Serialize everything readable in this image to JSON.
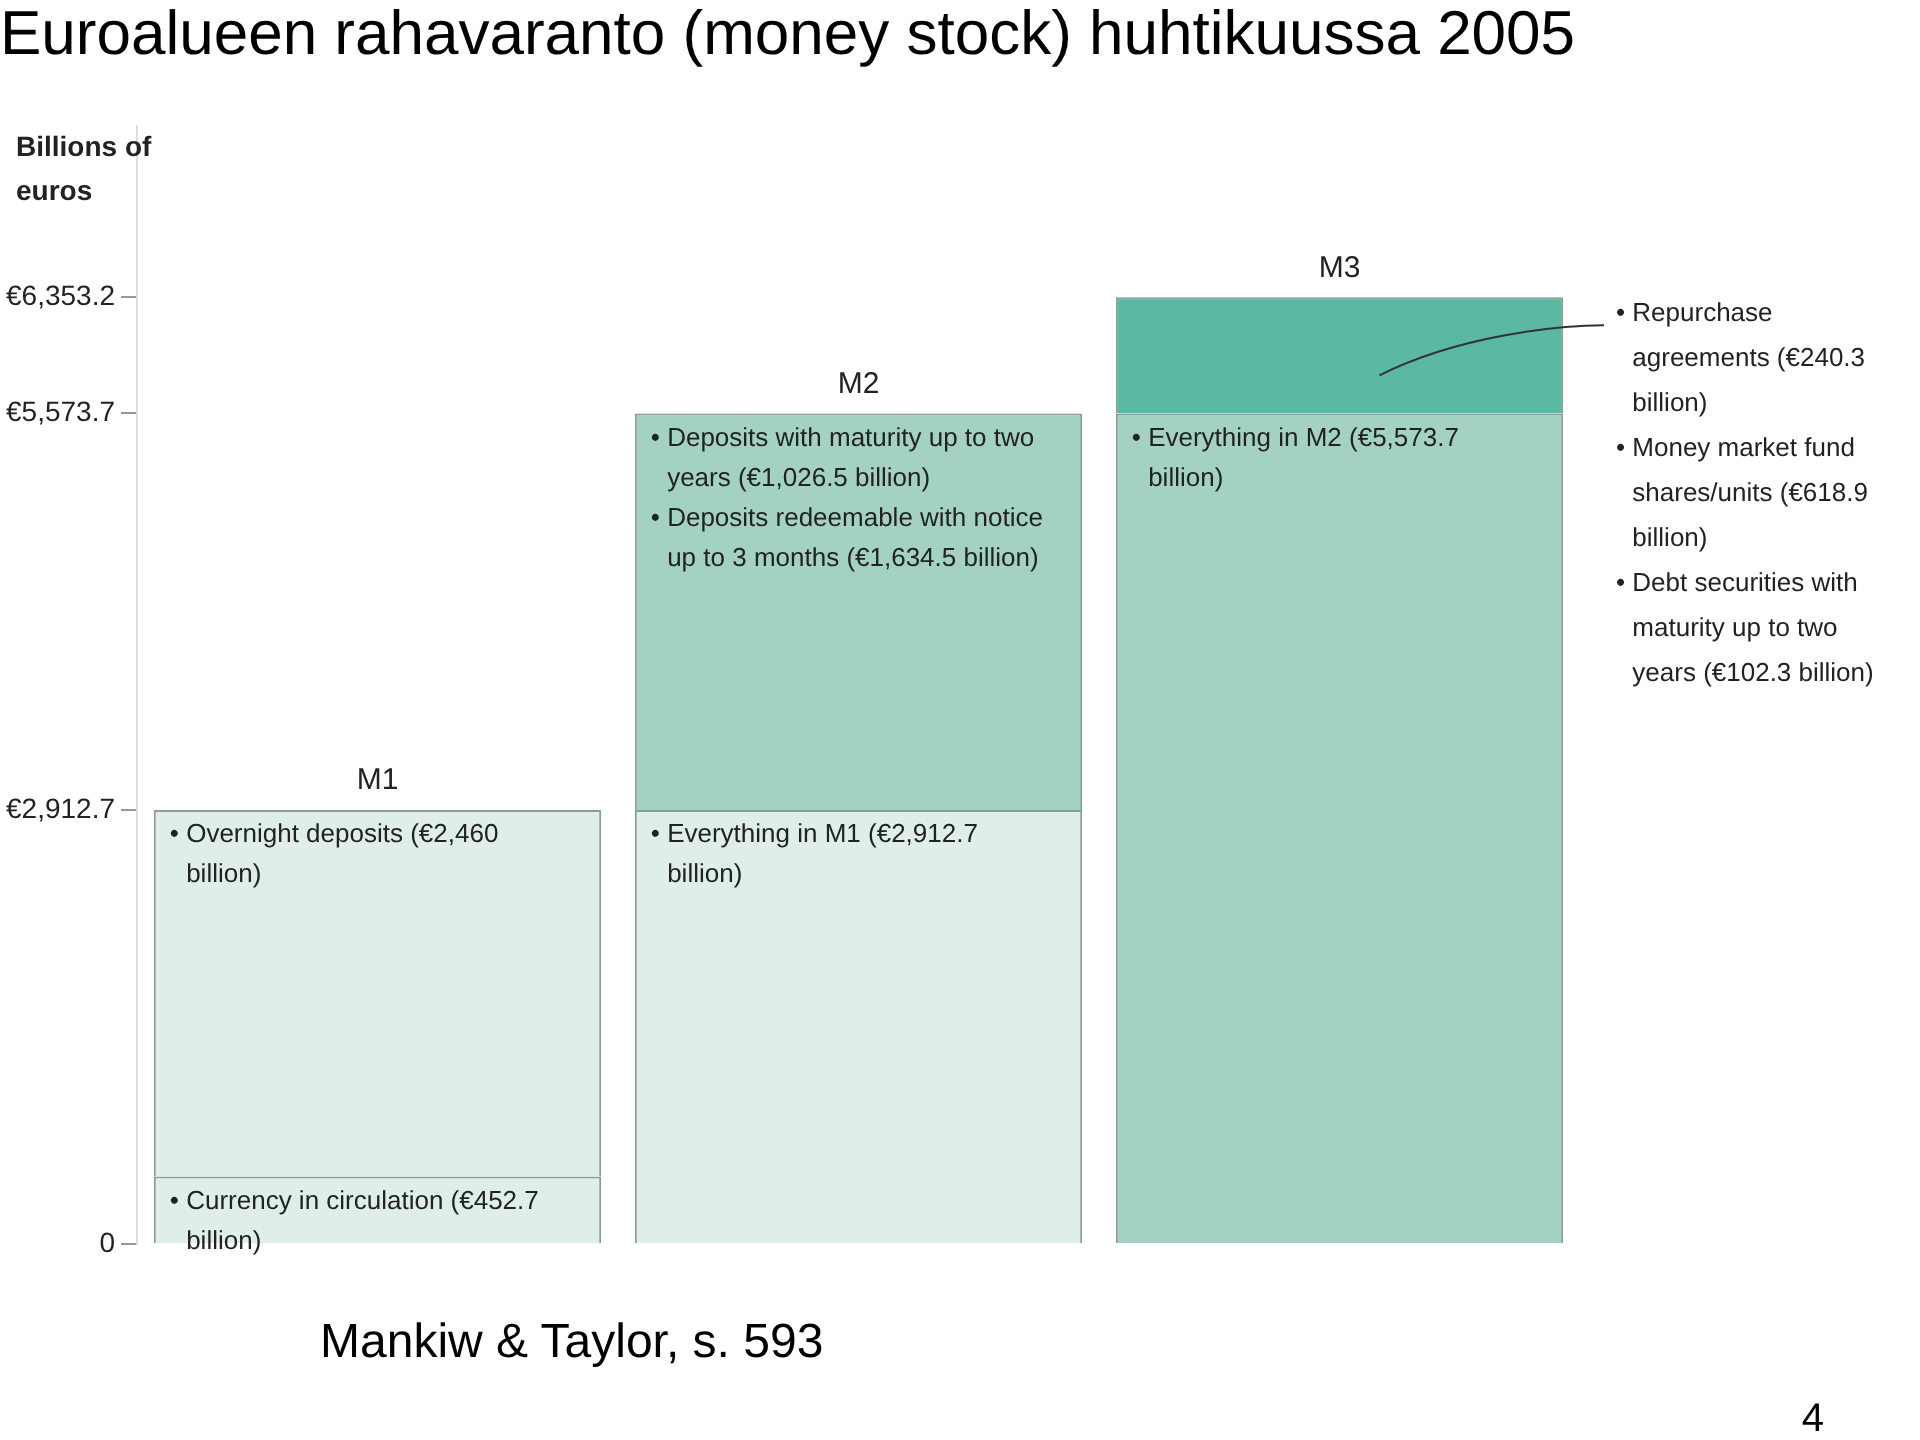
{
  "chart_data": {
    "type": "bar",
    "title": "Euroalueen rahavaranto (money stock) huhtikuussa 2005",
    "ylabel": "Billions of euros",
    "categories": [
      "M1",
      "M2",
      "M3"
    ],
    "stacked": true,
    "series": [
      {
        "color": "#dfeee6",
        "values": [
          452.7,
          null,
          null
        ]
      },
      {
        "color": "#dfeee6",
        "values": [
          2460,
          null,
          null
        ]
      },
      {
        "color": "#dfeee6",
        "values": [
          null,
          2912.7,
          null
        ]
      },
      {
        "color": "#a3d2c3",
        "values": [
          null,
          2661,
          null
        ]
      },
      {
        "color": "#a3d2c3",
        "values": [
          null,
          null,
          5573.7
        ]
      },
      {
        "color": "#5bb8a2",
        "values": [
          null,
          null,
          779.5
        ]
      }
    ],
    "ylim": [
      0,
      7500
    ],
    "yticks": [
      {
        "value": 0,
        "label": "0"
      },
      {
        "value": 2912.7,
        "label": "€2,912.7"
      },
      {
        "value": 5573.7,
        "label": "€5,573.7"
      },
      {
        "value": 6353.2,
        "label": "€6,353.2"
      }
    ],
    "annotations": [
      {
        "text": "• Overnight deposits (€2,460 billion)",
        "x": "M1",
        "y": 2912.7
      },
      {
        "text": "• Currency in circulation (€452.7 billion)",
        "x": "M1",
        "y": 452.7
      },
      {
        "text": "• Everything in M1 (€2,912.7 billion)",
        "x": "M2",
        "y": 2912.7
      },
      {
        "text": "• Deposits with maturity up to two years (€1,026.5 billion)\n• Deposits redeemable with notice up to 3 months (€1,634.5 billion)",
        "x": "M2",
        "y": 5573.7
      },
      {
        "text": "• Everything in M2 (€5,573.7 billion)",
        "x": "M3",
        "y": 5573.7
      },
      "• Repurchase agreements (€240.3 billion)",
      "• Money market fund shares/units (€618.9 billion)",
      "• Debt securities with maturity up to two years (€102.3 billion)",
      "Mankiw & Taylor, s. 593",
      "4"
    ]
  }
}
